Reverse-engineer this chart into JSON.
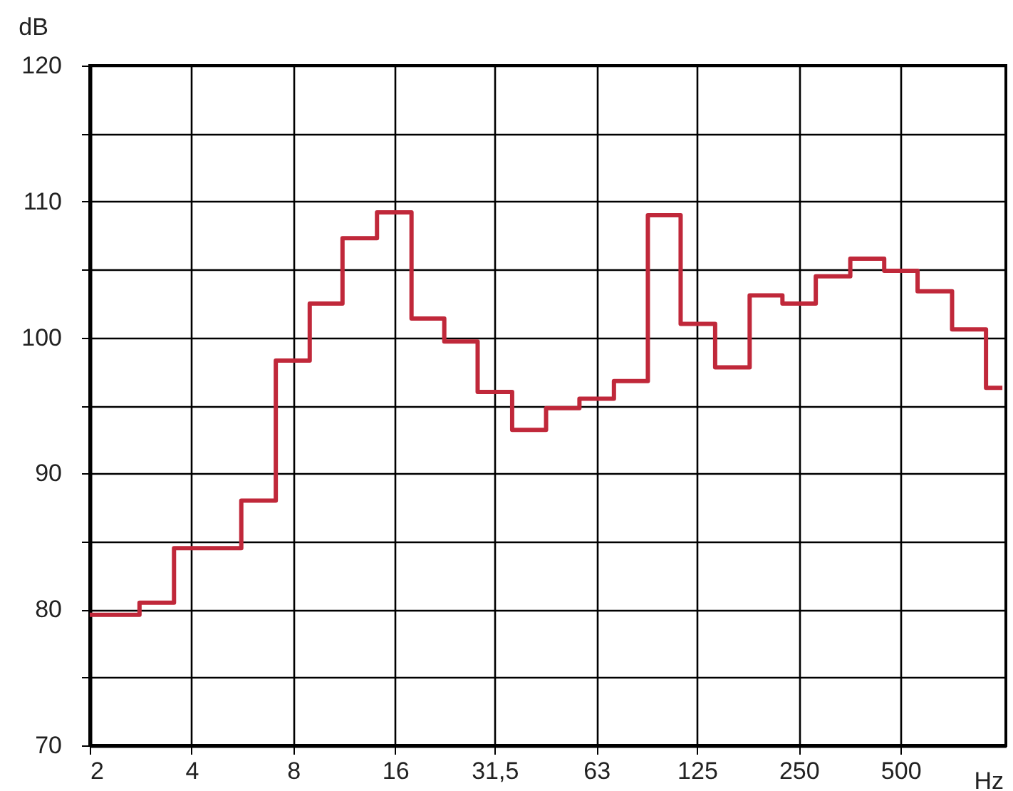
{
  "chart_data": {
    "type": "step",
    "xlabel": "Hz",
    "ylabel": "dB",
    "log": "x",
    "x": [
      2,
      2.5,
      3.15,
      4,
      5,
      6.3,
      8,
      10,
      12.5,
      16,
      20,
      25,
      31.5,
      40,
      50,
      63,
      80,
      100,
      125,
      160,
      200,
      250,
      315,
      400,
      500,
      630,
      800,
      1000
    ],
    "series": [
      {
        "color": "#c0283a",
        "values": [
          79.6,
          79.6,
          80.5,
          84.5,
          84.5,
          88,
          98.3,
          102.5,
          107.3,
          109.2,
          101.4,
          99.7,
          96,
          93.2,
          94.8,
          95.5,
          96.8,
          109,
          101,
          97.8,
          103.1,
          102.5,
          104.5,
          105.8,
          104.9,
          103.4,
          100.6,
          96.3
        ]
      }
    ],
    "xlim": [
      2,
      1024
    ],
    "ylim": [
      70,
      120
    ],
    "xticks": [
      2,
      4,
      8,
      16,
      {
        "value": 31.5,
        "label": "31,5"
      },
      63,
      125,
      250,
      500
    ],
    "yticks": [
      70,
      {
        "value": 75,
        "label": null
      },
      80,
      {
        "value": 85,
        "label": null
      },
      90,
      {
        "value": 95,
        "label": null
      },
      100,
      {
        "value": 105,
        "label": null
      },
      110,
      {
        "value": 115,
        "label": null
      },
      120
    ],
    "grid": true,
    "line_style": "solid"
  }
}
